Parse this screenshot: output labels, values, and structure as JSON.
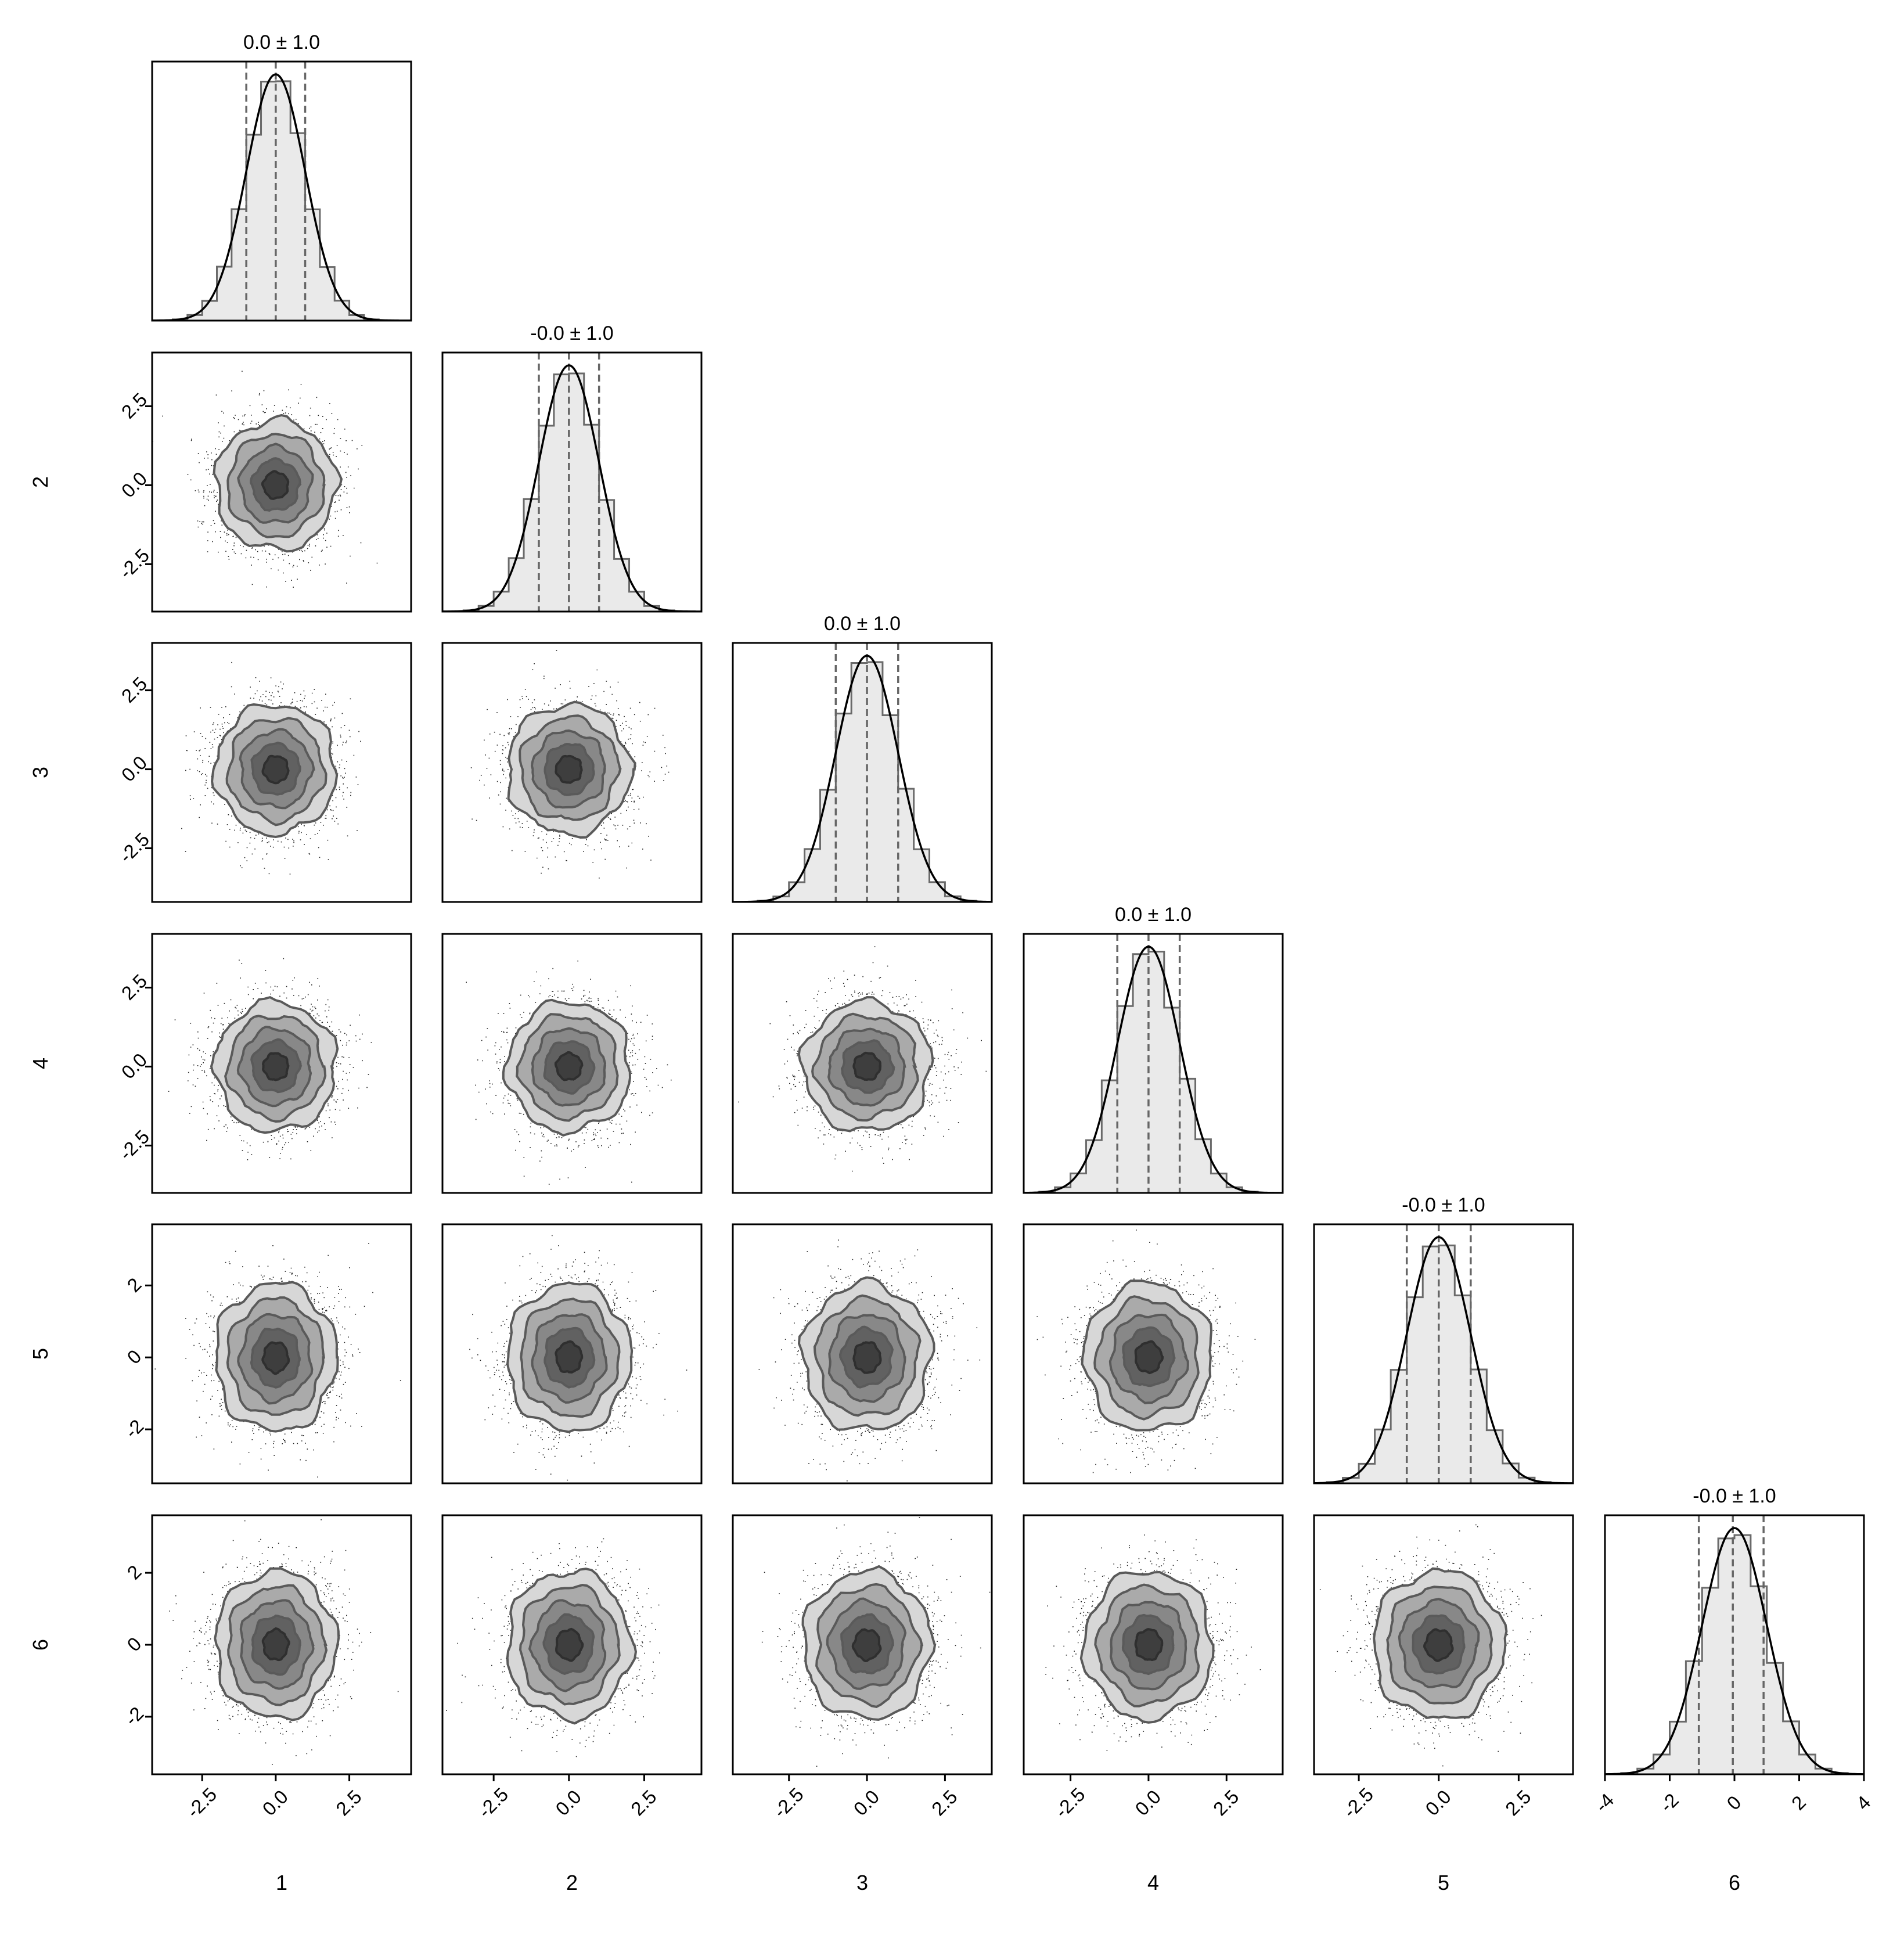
{
  "chart_data": {
    "type": "corner",
    "variables": [
      "1",
      "2",
      "3",
      "4",
      "5",
      "6"
    ],
    "marginal_titles": [
      "0.0 ± 1.0",
      "-0.0 ± 1.0",
      "0.0 ± 1.0",
      "0.0 ± 1.0",
      "-0.0 ± 1.0",
      "-0.0 ± 1.0"
    ],
    "marginals": [
      {
        "mean": 0.0,
        "std": 1.0,
        "quantiles": [
          -1.0,
          0.0,
          1.0
        ],
        "xlim": [
          -4.2,
          4.6
        ]
      },
      {
        "mean": 0.0,
        "std": 1.0,
        "quantiles": [
          -1.0,
          0.0,
          1.0
        ],
        "xlim": [
          -4.2,
          4.4
        ]
      },
      {
        "mean": 0.0,
        "std": 1.0,
        "quantiles": [
          -1.0,
          0.0,
          1.0
        ],
        "xlim": [
          -4.3,
          4.0
        ]
      },
      {
        "mean": 0.0,
        "std": 1.0,
        "quantiles": [
          -1.0,
          0.0,
          1.0
        ],
        "xlim": [
          -4.0,
          4.3
        ]
      },
      {
        "mean": 0.0,
        "std": 1.0,
        "quantiles": [
          -1.0,
          0.0,
          1.0
        ],
        "xlim": [
          -3.9,
          4.2
        ]
      },
      {
        "mean": 0.0,
        "std": 1.0,
        "quantiles": [
          -1.1,
          -0.05,
          0.9
        ],
        "xlim": [
          -4.0,
          4.0
        ]
      }
    ],
    "x_ticks": [
      [
        "-2.5",
        "0.0",
        "2.5"
      ],
      [
        "-2.5",
        "0.0",
        "2.5"
      ],
      [
        "-2.5",
        "0.0",
        "2.5"
      ],
      [
        "-2.5",
        "0.0",
        "2.5"
      ],
      [
        "-2.5",
        "0.0",
        "2.5"
      ],
      [
        "-4",
        "-2",
        "0",
        "2",
        "4"
      ]
    ],
    "y_ticks": {
      "2": [
        "2.5",
        "0.0",
        "-2.5"
      ],
      "3": [
        "2.5",
        "0.0",
        "-2.5"
      ],
      "4": [
        "2.5",
        "0.0",
        "-2.5"
      ],
      "5": [
        "2",
        "0",
        "-2"
      ],
      "6": [
        "2",
        "0",
        "-2"
      ]
    },
    "ylims": {
      "2": [
        -4.0,
        4.2
      ],
      "3": [
        -4.2,
        4.0
      ],
      "4": [
        -4.0,
        4.2
      ],
      "5": [
        -3.5,
        3.7
      ],
      "6": [
        -3.6,
        3.6
      ]
    },
    "correlation": 0.0,
    "grid": false,
    "colors": {
      "fill": "#eaeaea",
      "hist_line": "#6a6a6a",
      "kde": "#000000",
      "points": "#202020",
      "contour_dark": "#2f2f2f"
    }
  }
}
